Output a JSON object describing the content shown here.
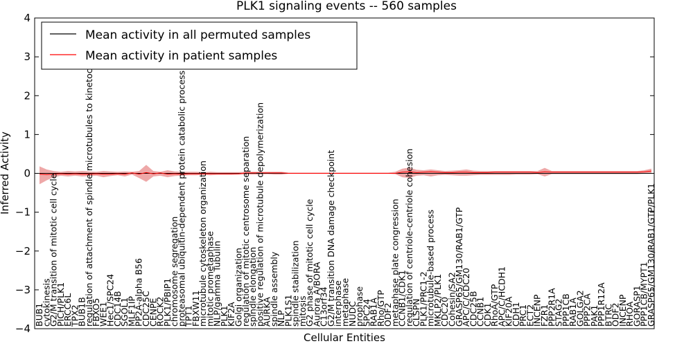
{
  "chart_data": {
    "type": "line",
    "title": "PLK1 signaling events -- 560 samples",
    "xlabel": "Cellular Entities",
    "ylabel": "Inferred Activity",
    "ylim": [
      -4,
      4
    ],
    "yticks": [
      -4,
      -3,
      -2,
      -1,
      0,
      1,
      2,
      3,
      4
    ],
    "grid": false,
    "legend_position": "top-left",
    "colors": {
      "permuted": "#000000",
      "patient": "#ff0000",
      "band": "#e06060"
    },
    "categories": [
      "BUB1",
      "cytokinesis",
      "G2/M transition of mitotic cell cycle",
      "PICH/PLK1",
      "ERCC6L",
      "TPX2",
      "BUB1B",
      "regulation of attachment of spindle microtubules to kinetochore",
      "FBXO5",
      "WEE1",
      "Hec1/SPC24",
      "CDC14B",
      "SGOL1",
      "MLF1IP",
      "PP2A-alpha B56",
      "CDC25C",
      "CENPE",
      "ROCK2",
      "PLK1/PBIP1",
      "chromosome segregation",
      "proteasomal ubiquitin-dependent protein catabolic process",
      "TPT1",
      "FBXW11",
      "microtubule cytoskeleton organization",
      "mitotic prometaphase",
      "NLP/gamma Tubulin",
      "PLK1",
      "KIF2A",
      "Golgi organization",
      "regulation of mitotic centrosome separation",
      "spindle elongation",
      "positive regulation of microtubule depolymerization",
      "AURKA",
      "spindle assembly",
      "NLP",
      "PLK1S1",
      "spindle stabilization",
      "mitosis",
      "G2 phase of mitotic cell cycle",
      "Aurora A/BORA",
      "C13orf34",
      "G2/M transition DNA damage checkpoint",
      "interphase",
      "metaphase",
      "NUDC",
      "prophase",
      "SPC24",
      "RAB1A",
      "Rho/GTP",
      "ODF2",
      "metaphase plate congression",
      "CCNB1/CDK1",
      "regulation of centriole-centriole cohesion",
      "CLSPN",
      "PLK1/PRC1-2",
      "microtubule-based process",
      "MKLP2/PLK1",
      "CDC20",
      "Cohesin/SA2",
      "GRASP65/GM130/RAB1/GTP",
      "APC/C/CDC20",
      "CDC25B",
      "CCNB1",
      "CDK1",
      "RhoA/GTP",
      "APC/C/HCDH1",
      "KIF20A",
      "CDH1",
      "PRC1",
      "ECT2",
      "INCENP",
      "FZR1",
      "PPP2R1A",
      "STAG2",
      "PPP1CB",
      "RAB1A",
      "GOLGA2",
      "PPP2CA",
      "PAK1",
      "PPP1R12A",
      "BTRC",
      "ODF2",
      "INCENP",
      "RHOA",
      "GORASP1",
      "PPP1CB/MYPT1",
      "GRASP65/GM130/RAB1/GTP/PLK1"
    ],
    "series": [
      {
        "name": "Mean activity in all permuted samples",
        "values": [
          0,
          0,
          0,
          0,
          0,
          0,
          0,
          0,
          0,
          0,
          0,
          0,
          0,
          0,
          0,
          0,
          0,
          0,
          0,
          0,
          0,
          0,
          0,
          0,
          0,
          0,
          0,
          0,
          0,
          0,
          0,
          0,
          0,
          0,
          0,
          0,
          0,
          0,
          0,
          0,
          0,
          0,
          0,
          0,
          0,
          0,
          0,
          0,
          0,
          0,
          0,
          0,
          0,
          0,
          0,
          0,
          0,
          0,
          0,
          0,
          0,
          0,
          0,
          0,
          0,
          0,
          0,
          0,
          0,
          0,
          0,
          0,
          0,
          0,
          0,
          0,
          0,
          0,
          0,
          0,
          0,
          0,
          0,
          0,
          0,
          0,
          0
        ]
      },
      {
        "name": "Mean activity in patient samples",
        "values": [
          -0.02,
          -0.03,
          -0.02,
          -0.01,
          -0.02,
          -0.01,
          -0.02,
          -0.02,
          -0.01,
          -0.02,
          -0.02,
          -0.01,
          -0.02,
          0.01,
          -0.02,
          0.02,
          -0.01,
          0.01,
          -0.02,
          -0.01,
          -0.02,
          -0.01,
          -0.01,
          -0.01,
          -0.01,
          -0.01,
          -0.01,
          -0.01,
          -0.01,
          0.01,
          0.01,
          0.01,
          0.01,
          0.01,
          0.01,
          0.0,
          0.0,
          0.0,
          0.0,
          0.0,
          0.0,
          0.0,
          0.0,
          0.0,
          0.0,
          0.0,
          0.0,
          0.0,
          0.0,
          0.0,
          0.0,
          0.03,
          0.04,
          0.02,
          0.03,
          0.04,
          0.03,
          0.02,
          0.02,
          0.03,
          0.03,
          0.02,
          0.02,
          0.02,
          0.03,
          0.03,
          0.03,
          0.03,
          0.03,
          0.03,
          0.02,
          0.04,
          0.03,
          0.03,
          0.03,
          0.03,
          0.03,
          0.03,
          0.03,
          0.03,
          0.03,
          0.03,
          0.03,
          0.03,
          0.03,
          0.04,
          0.06
        ]
      }
    ],
    "band_low": [
      -0.28,
      -0.18,
      -0.1,
      -0.06,
      -0.08,
      -0.06,
      -0.08,
      -0.07,
      -0.06,
      -0.1,
      -0.07,
      -0.05,
      -0.08,
      -0.03,
      -0.12,
      -0.22,
      -0.08,
      -0.06,
      -0.1,
      -0.07,
      -0.06,
      -0.05,
      -0.05,
      -0.04,
      -0.05,
      -0.04,
      -0.04,
      -0.04,
      -0.03,
      -0.03,
      -0.03,
      -0.03,
      -0.02,
      -0.03,
      -0.03,
      -0.01,
      -0.01,
      -0.01,
      -0.01,
      -0.01,
      -0.01,
      -0.01,
      -0.01,
      -0.01,
      -0.01,
      -0.01,
      -0.01,
      -0.01,
      -0.01,
      -0.01,
      -0.02,
      -0.1,
      -0.12,
      -0.06,
      -0.05,
      -0.08,
      -0.05,
      -0.04,
      -0.05,
      -0.06,
      -0.06,
      -0.05,
      -0.04,
      -0.04,
      -0.04,
      -0.04,
      -0.04,
      -0.03,
      -0.03,
      -0.03,
      -0.02,
      -0.08,
      -0.02,
      -0.02,
      -0.02,
      -0.02,
      -0.02,
      -0.02,
      -0.02,
      -0.02,
      -0.02,
      -0.02,
      -0.02,
      -0.02,
      -0.02,
      -0.01,
      -0.01
    ],
    "band_high": [
      0.18,
      0.1,
      0.06,
      0.04,
      0.06,
      0.05,
      0.06,
      0.05,
      0.04,
      0.06,
      0.05,
      0.04,
      0.05,
      0.04,
      0.06,
      0.22,
      0.06,
      0.04,
      0.08,
      0.05,
      0.04,
      0.04,
      0.04,
      0.03,
      0.04,
      0.03,
      0.03,
      0.03,
      0.03,
      0.04,
      0.04,
      0.04,
      0.04,
      0.04,
      0.04,
      0.02,
      0.02,
      0.02,
      0.02,
      0.02,
      0.02,
      0.02,
      0.02,
      0.02,
      0.02,
      0.02,
      0.02,
      0.02,
      0.02,
      0.02,
      0.04,
      0.12,
      0.15,
      0.09,
      0.08,
      0.1,
      0.08,
      0.06,
      0.07,
      0.08,
      0.1,
      0.07,
      0.06,
      0.06,
      0.06,
      0.06,
      0.06,
      0.06,
      0.06,
      0.06,
      0.06,
      0.14,
      0.06,
      0.06,
      0.06,
      0.06,
      0.06,
      0.06,
      0.06,
      0.06,
      0.06,
      0.06,
      0.06,
      0.06,
      0.06,
      0.08,
      0.12
    ]
  }
}
